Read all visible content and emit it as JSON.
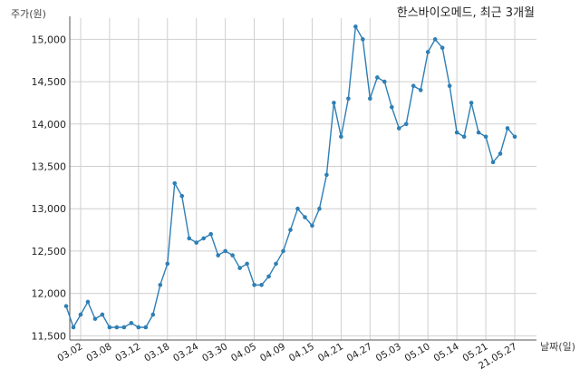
{
  "chart_data": {
    "type": "line",
    "title": "한스바이오메드, 최근 3개월",
    "ylabel": "주가(원)",
    "xlabel": "날짜(일)",
    "ylim": [
      11450,
      15250
    ],
    "grid": true,
    "yticks": [
      {
        "value": 11500,
        "label": "11,500"
      },
      {
        "value": 12000,
        "label": "12,000"
      },
      {
        "value": 12500,
        "label": "12,500"
      },
      {
        "value": 13000,
        "label": "13,000"
      },
      {
        "value": 13500,
        "label": "13,500"
      },
      {
        "value": 14000,
        "label": "14,000"
      },
      {
        "value": 14500,
        "label": "14,500"
      },
      {
        "value": 15000,
        "label": "15,000"
      }
    ],
    "xticks": [
      {
        "index": 2,
        "label": "03.02"
      },
      {
        "index": 6,
        "label": "03.08"
      },
      {
        "index": 10,
        "label": "03.12"
      },
      {
        "index": 14,
        "label": "03.18"
      },
      {
        "index": 18,
        "label": "03.24"
      },
      {
        "index": 22,
        "label": "03.30"
      },
      {
        "index": 26,
        "label": "04.05"
      },
      {
        "index": 30,
        "label": "04.09"
      },
      {
        "index": 34,
        "label": "04.15"
      },
      {
        "index": 38,
        "label": "04.21"
      },
      {
        "index": 42,
        "label": "04.27"
      },
      {
        "index": 46,
        "label": "05.03"
      },
      {
        "index": 50,
        "label": "05.10"
      },
      {
        "index": 54,
        "label": "05.14"
      },
      {
        "index": 58,
        "label": "05.21"
      },
      {
        "index": 62,
        "label": "21.05.27"
      }
    ],
    "series": [
      {
        "color": "#2e7fb5",
        "values": [
          11850,
          11600,
          11750,
          11900,
          11700,
          11750,
          11600,
          11600,
          11600,
          11650,
          11600,
          11600,
          11750,
          12100,
          12350,
          13300,
          13150,
          12650,
          12600,
          12650,
          12700,
          12450,
          12500,
          12450,
          12300,
          12350,
          12100,
          12100,
          12200,
          12350,
          12500,
          12750,
          13000,
          12900,
          12800,
          13000,
          13400,
          14250,
          13850,
          14300,
          15150,
          15000,
          14300,
          14550,
          14500,
          14200,
          13950,
          14000,
          14450,
          14400,
          14850,
          15000,
          14900,
          14450,
          13900,
          13850,
          14250,
          13900,
          13850,
          13550,
          13650,
          13950,
          13850
        ]
      }
    ]
  }
}
